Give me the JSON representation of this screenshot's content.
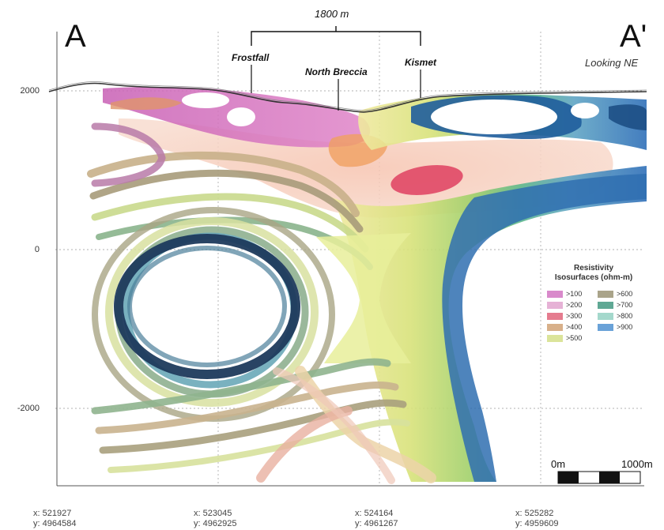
{
  "section": {
    "start_label": "A",
    "end_label": "A'",
    "orientation": "Looking NE",
    "scale_span": "1800 m"
  },
  "targets": [
    {
      "name": "Frostfall"
    },
    {
      "name": "North Breccia"
    },
    {
      "name": "Kismet"
    }
  ],
  "elevation_labels": [
    "2000",
    "0",
    "-2000"
  ],
  "coordinates": [
    {
      "x": "x: 521927",
      "y": "y: 4964584"
    },
    {
      "x": "x: 523045",
      "y": "y: 4962925"
    },
    {
      "x": "x: 524164",
      "y": "y: 4961267"
    },
    {
      "x": "x: 525282",
      "y": "y: 4959609"
    }
  ],
  "legend": {
    "title_line1": "Resistivity",
    "title_line2": "Isosurfaces (ohm-m)",
    "items": [
      {
        "label": ">100",
        "color": "#d98acb"
      },
      {
        "label": ">600",
        "color": "#aaa48a"
      },
      {
        "label": ">200",
        "color": "#e6b2d6"
      },
      {
        "label": ">700",
        "color": "#5fa894"
      },
      {
        "label": ">300",
        "color": "#e57c8f"
      },
      {
        "label": ">800",
        "color": "#a4d8cc"
      },
      {
        "label": ">400",
        "color": "#d8b08a"
      },
      {
        "label": ">900",
        "color": "#6aa2d8"
      },
      {
        "label": ">500",
        "color": "#dbe49a"
      }
    ]
  },
  "scale_bar": {
    "start": "0m",
    "end": "1000m"
  }
}
